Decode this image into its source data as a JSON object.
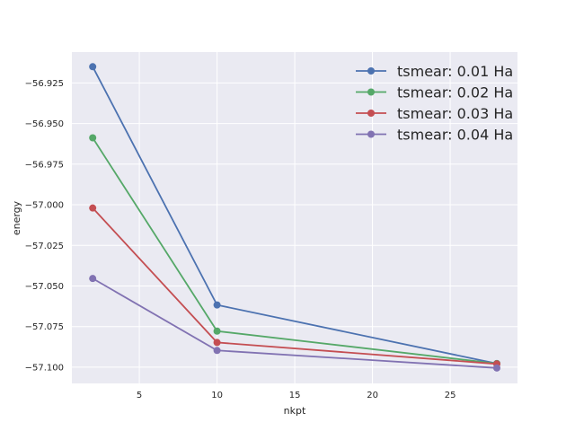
{
  "chart_data": {
    "type": "line",
    "title": "",
    "xlabel": "nkpt",
    "ylabel": "energy",
    "xlim": [
      0.66,
      29.33
    ],
    "ylim": [
      -57.11,
      -56.906
    ],
    "xticks": [
      5,
      10,
      15,
      20,
      25
    ],
    "yticks": [
      -56.925,
      -56.95,
      -56.975,
      -57.0,
      -57.025,
      -57.05,
      -57.075,
      -57.1
    ],
    "ytick_labels": [
      "−56.925",
      "−56.950",
      "−56.975",
      "−57.000",
      "−57.025",
      "−57.050",
      "−57.075",
      "−57.100"
    ],
    "grid": true,
    "background": "#eaeaf2",
    "legend_position": "top-right",
    "x": [
      2,
      10,
      28
    ],
    "series": [
      {
        "name": "tsmear: 0.01 Ha",
        "color": "#4c72b0",
        "values": [
          -56.915,
          -57.0617,
          -57.0978
        ]
      },
      {
        "name": "tsmear: 0.02 Ha",
        "color": "#55a868",
        "values": [
          -56.9588,
          -57.0778,
          -57.0978
        ]
      },
      {
        "name": "tsmear: 0.03 Ha",
        "color": "#c44e52",
        "values": [
          -57.002,
          -57.0848,
          -57.098
        ]
      },
      {
        "name": "tsmear: 0.04 Ha",
        "color": "#8172b2",
        "values": [
          -57.0454,
          -57.0897,
          -57.1005
        ]
      }
    ]
  }
}
